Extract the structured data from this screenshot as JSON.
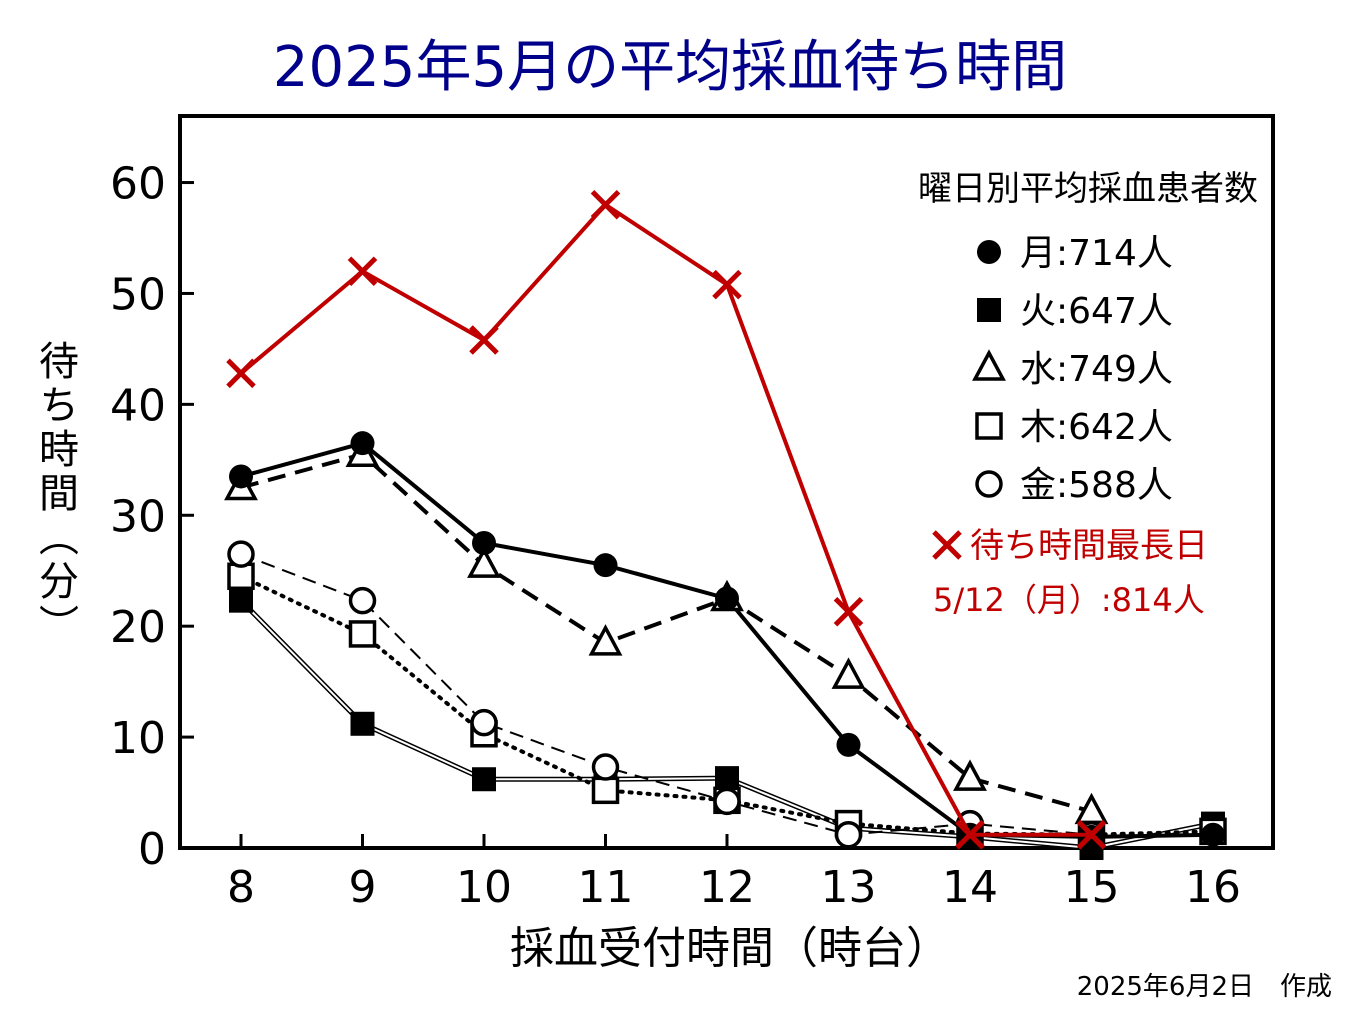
{
  "title": "2025年5月の平均採血待ち時間",
  "footer": "2025年6月2日　作成",
  "chart_data": {
    "type": "line",
    "title": "2025年5月の平均採血待ち時間",
    "xlabel": "採血受付時間（時台）",
    "ylabel": "待ち時間（分）",
    "x": [
      8,
      9,
      10,
      11,
      12,
      13,
      14,
      15,
      16
    ],
    "x_ticks": [
      "8",
      "9",
      "10",
      "11",
      "12",
      "13",
      "14",
      "15",
      "16"
    ],
    "y_ticks": [
      "0",
      "10",
      "20",
      "30",
      "40",
      "50",
      "60"
    ],
    "ylim": [
      0,
      66
    ],
    "grid": false,
    "legend_title": "曜日別平均採血患者数",
    "legend_position": "top-right",
    "series": [
      {
        "name": "月",
        "count": "714人",
        "legend": "月:714人",
        "marker": "filled-circle",
        "line": "solid-thick",
        "color": "#000000",
        "values": [
          33.5,
          36.5,
          27.5,
          25.5,
          22.5,
          9.3,
          1.2,
          1.0,
          1.2
        ]
      },
      {
        "name": "火",
        "count": "647人",
        "legend": "火:647人",
        "marker": "filled-square",
        "line": "double-thin",
        "color": "#000000",
        "values": [
          22.3,
          11.2,
          6.2,
          6.2,
          6.3,
          1.8,
          1.0,
          0.0,
          2.2
        ]
      },
      {
        "name": "水",
        "count": "749人",
        "legend": "水:749人",
        "marker": "open-triangle",
        "line": "dashed-thick",
        "color": "#000000",
        "values": [
          32.5,
          35.5,
          25.5,
          18.5,
          22.5,
          15.5,
          6.3,
          3.3,
          null
        ]
      },
      {
        "name": "木",
        "count": "642人",
        "legend": "木:642人",
        "marker": "open-square",
        "line": "dotted",
        "color": "#000000",
        "values": [
          24.5,
          19.3,
          10.3,
          5.2,
          4.3,
          2.2,
          1.3,
          1.2,
          1.5
        ]
      },
      {
        "name": "金",
        "count": "588人",
        "legend": "金:588人",
        "marker": "open-circle",
        "line": "dashed-thin",
        "color": "#000000",
        "values": [
          26.5,
          22.3,
          11.3,
          7.3,
          4.2,
          1.2,
          2.2,
          1.2,
          null
        ]
      }
    ],
    "highlight": {
      "label": "待ち時間最長日",
      "sublabel": "5/12（月）:814人",
      "marker": "x",
      "color": "#c00000",
      "values": [
        42.8,
        52.0,
        45.8,
        58.0,
        50.8,
        21.3,
        1.2,
        1.2,
        null
      ]
    }
  }
}
